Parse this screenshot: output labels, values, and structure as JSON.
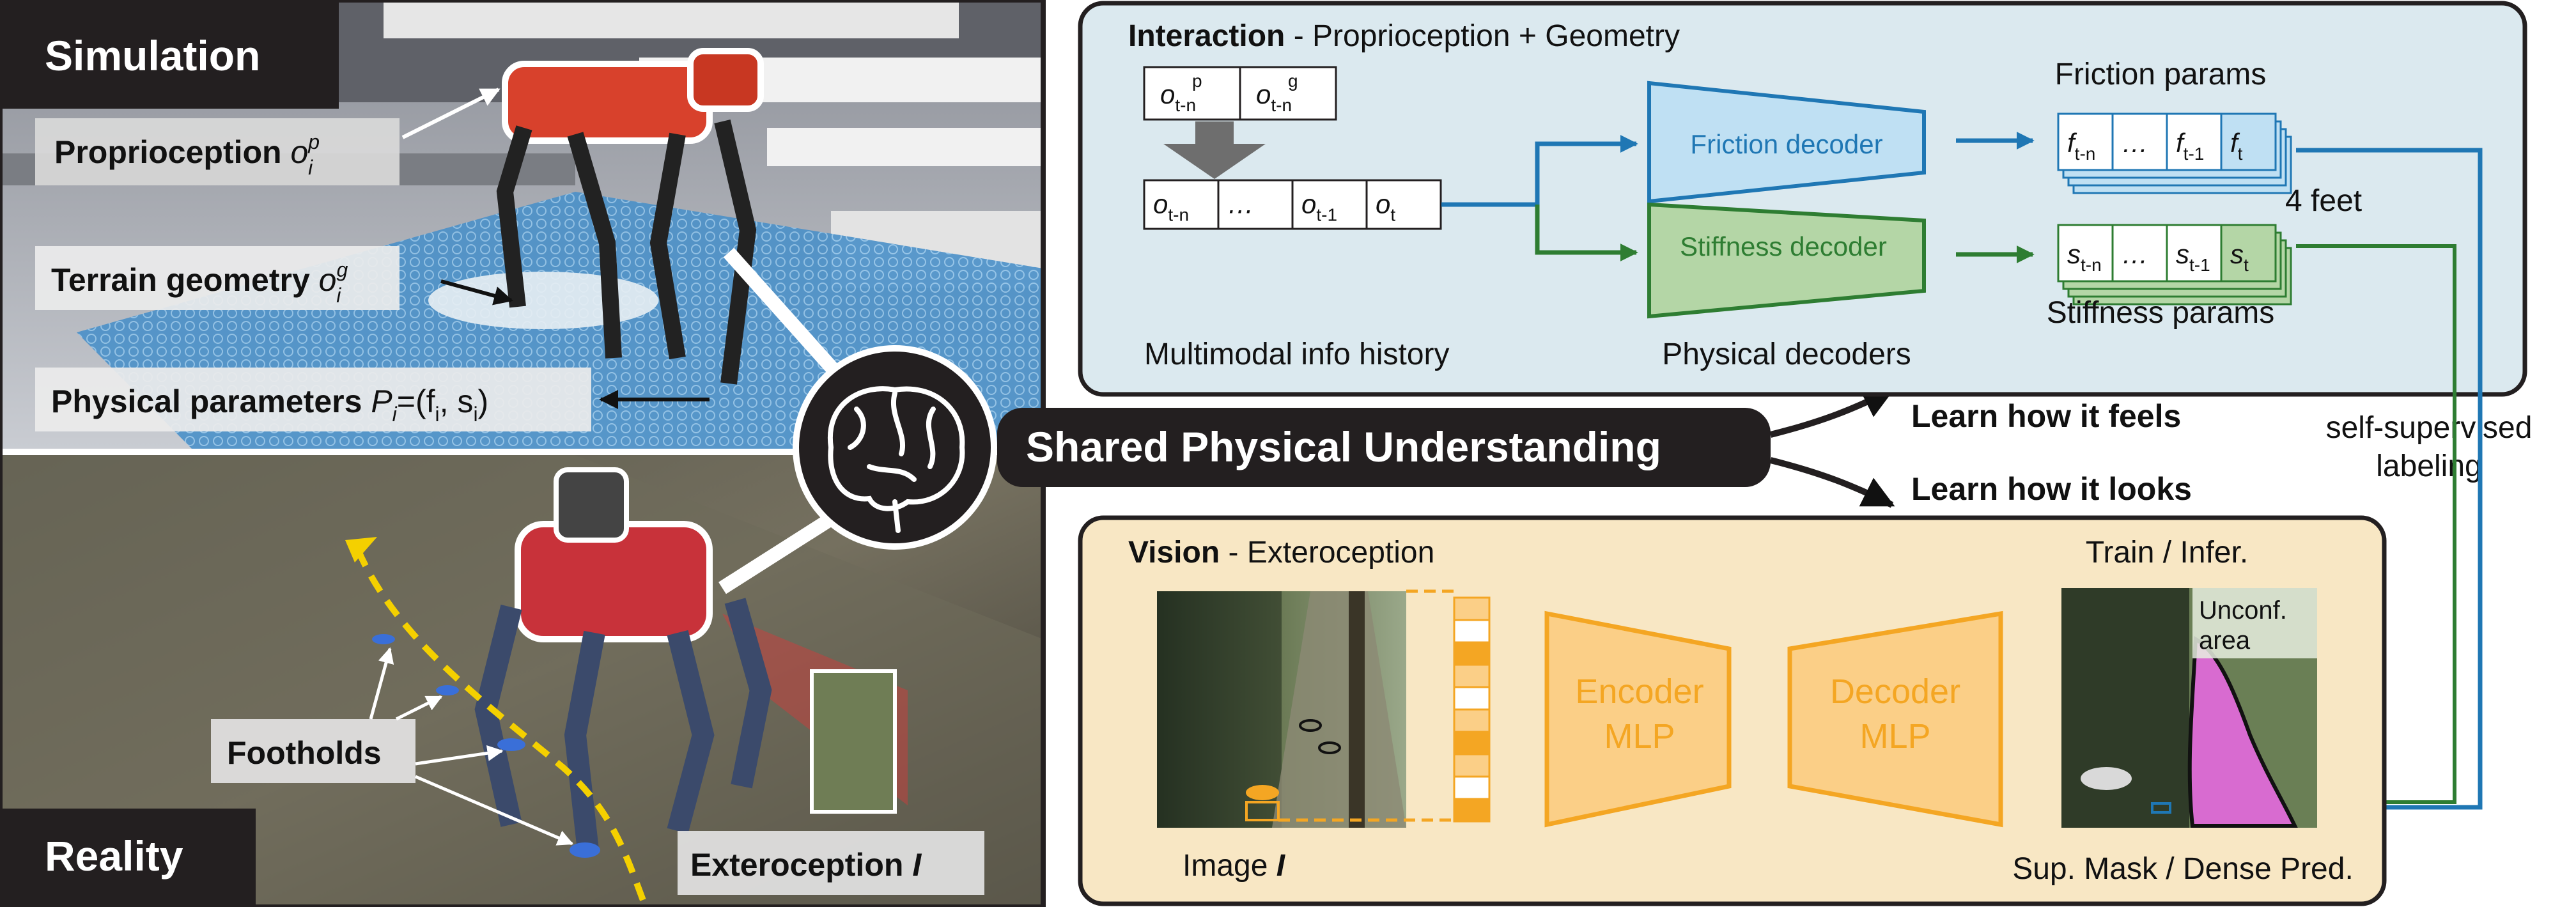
{
  "sim": {
    "title": "Simulation",
    "proprio_label": "Proprioception",
    "proprio_sym": "o",
    "proprio_sup": "p",
    "proprio_sub": "i",
    "terrain_label": "Terrain geometry",
    "terrain_sym": "o",
    "terrain_sup": "g",
    "terrain_sub": "i",
    "phys_label": "Physical parameters",
    "phys_sym": "P",
    "phys_sub": "i",
    "phys_eq": "=(f",
    "phys_eq_sub1": "i",
    "phys_sep": ", s",
    "phys_eq_sub2": "i",
    "phys_close": ")"
  },
  "reality": {
    "title": "Reality",
    "footholds_label": "Footholds",
    "extero_label": "Exteroception",
    "extero_sym": "I"
  },
  "center": {
    "shared_label": "Shared Physical Understanding",
    "feels_label": "Learn how it feels",
    "looks_label": "Learn how it looks",
    "self_sup_label": "self-supervised",
    "labeling_label": "labeling"
  },
  "interaction": {
    "title": "Interaction",
    "subtitle": " - Proprioception + Geometry",
    "obs_p_sym": "o",
    "obs_p_sub": "t-n",
    "obs_p_sup": "p",
    "obs_g_sym": "o",
    "obs_g_sub": "t-n",
    "obs_g_sup": "g",
    "hist_cells": [
      {
        "sym": "o",
        "sub": "t-n"
      },
      {
        "sym": "…",
        "sub": ""
      },
      {
        "sym": "o",
        "sub": "t-1"
      },
      {
        "sym": "o",
        "sub": "t"
      }
    ],
    "history_label": "Multimodal info history",
    "friction_decoder": "Friction decoder",
    "stiffness_decoder": "Stiffness decoder",
    "decoders_label": "Physical decoders",
    "friction_params_label": "Friction params",
    "stiffness_params_label": "Stiffness params",
    "feet_label": "4 feet",
    "friction_cells": [
      {
        "sym": "f",
        "sub": "t-n"
      },
      {
        "sym": "…",
        "sub": ""
      },
      {
        "sym": "f",
        "sub": "t-1"
      },
      {
        "sym": "f",
        "sub": "t"
      }
    ],
    "stiffness_cells": [
      {
        "sym": "s",
        "sub": "t-n"
      },
      {
        "sym": "…",
        "sub": ""
      },
      {
        "sym": "s",
        "sub": "t-1"
      },
      {
        "sym": "s",
        "sub": "t"
      }
    ]
  },
  "vision": {
    "title": "Vision",
    "subtitle": " - Exteroception",
    "image_label": "Image ",
    "image_sym": "I",
    "encoder_line1": "Encoder",
    "encoder_line2": "MLP",
    "decoder_line1": "Decoder",
    "decoder_line2": "MLP",
    "train_label": "Train / Infer.",
    "unconf_line1": "Unconf.",
    "unconf_line2": "area",
    "sup_mask_label": "Sup. Mask / Dense Pred."
  },
  "colors": {
    "interaction_bg": "#dbe9ef",
    "vision_bg": "#f8e7c4",
    "friction_blue": "#1f77b4",
    "stiffness_green": "#2e7d32",
    "encoder_orange": "#f4a623",
    "dark": "#231f20"
  }
}
